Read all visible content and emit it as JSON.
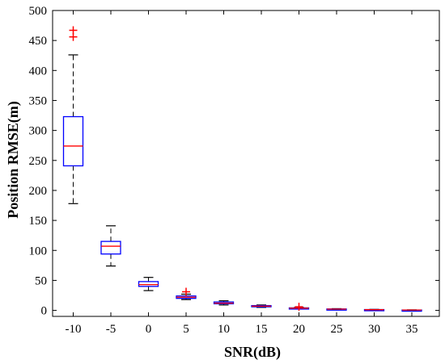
{
  "chart_data": {
    "type": "boxplot",
    "xlabel": "SNR(dB)",
    "ylabel": "Position RMSE(m)",
    "title": "",
    "ylim": [
      -10,
      500
    ],
    "y_ticks": [
      0,
      50,
      100,
      150,
      200,
      250,
      300,
      350,
      400,
      450,
      500
    ],
    "categories": [
      "-10",
      "-5",
      "0",
      "5",
      "10",
      "15",
      "20",
      "25",
      "30",
      "35"
    ],
    "colors": {
      "box": "#0000ff",
      "median": "#ff0000",
      "whisker": "#000000",
      "outlier": "#ff0000"
    },
    "boxes": [
      {
        "category": "-10",
        "whisker_low": 178,
        "q1": 241,
        "median": 274,
        "q3": 323,
        "whisker_high": 426,
        "outliers": [
          456,
          467
        ]
      },
      {
        "category": "-5",
        "whisker_low": 74,
        "q1": 94,
        "median": 107,
        "q3": 115,
        "whisker_high": 141,
        "outliers": []
      },
      {
        "category": "0",
        "whisker_low": 33,
        "q1": 40,
        "median": 43,
        "q3": 48,
        "whisker_high": 55,
        "outliers": []
      },
      {
        "category": "5",
        "whisker_low": 18,
        "q1": 20,
        "median": 22,
        "q3": 24,
        "whisker_high": 27,
        "outliers": [
          31
        ]
      },
      {
        "category": "10",
        "whisker_low": 9,
        "q1": 11,
        "median": 12,
        "q3": 14,
        "whisker_high": 16,
        "outliers": []
      },
      {
        "category": "15",
        "whisker_low": 5,
        "q1": 6.5,
        "median": 7,
        "q3": 8,
        "whisker_high": 9,
        "outliers": []
      },
      {
        "category": "20",
        "whisker_low": 2.5,
        "q1": 3.2,
        "median": 3.7,
        "q3": 4.2,
        "whisker_high": 5,
        "outliers": [
          6
        ]
      },
      {
        "category": "25",
        "whisker_low": 1.3,
        "q1": 1.8,
        "median": 2.1,
        "q3": 2.4,
        "whisker_high": 2.9,
        "outliers": []
      },
      {
        "category": "30",
        "whisker_low": 0.7,
        "q1": 1.0,
        "median": 1.2,
        "q3": 1.4,
        "whisker_high": 1.7,
        "outliers": []
      },
      {
        "category": "35",
        "whisker_low": 0.3,
        "q1": 0.5,
        "median": 0.6,
        "q3": 0.7,
        "whisker_high": 0.9,
        "outliers": []
      }
    ]
  }
}
